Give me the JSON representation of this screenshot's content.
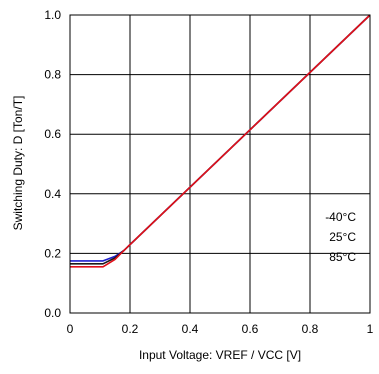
{
  "chart_data": {
    "type": "line",
    "title": "",
    "xlabel": "Input Voltage: VREF / VCC [V]",
    "ylabel": "Switching Duty: D [Ton/T]",
    "xlim": [
      0,
      1
    ],
    "ylim": [
      0,
      1
    ],
    "xticks": [
      "0",
      "0.2",
      "0.4",
      "0.6",
      "0.8",
      "1"
    ],
    "yticks": [
      "0.0",
      "0.2",
      "0.4",
      "0.6",
      "0.8",
      "1.0"
    ],
    "grid": true,
    "legend_position": "right-lower",
    "series": [
      {
        "name": "-40°C",
        "color": "#1f1fcf",
        "x": [
          0,
          0.11,
          0.15,
          0.18,
          1.0
        ],
        "y": [
          0.175,
          0.175,
          0.19,
          0.21,
          1.0
        ]
      },
      {
        "name": "25°C",
        "color": "#1a1a1a",
        "x": [
          0,
          0.11,
          0.15,
          0.18,
          1.0
        ],
        "y": [
          0.165,
          0.165,
          0.185,
          0.21,
          1.0
        ]
      },
      {
        "name": "85°C",
        "color": "#e0101a",
        "x": [
          0,
          0.11,
          0.15,
          0.18,
          1.0
        ],
        "y": [
          0.155,
          0.155,
          0.18,
          0.21,
          1.0
        ]
      }
    ]
  }
}
